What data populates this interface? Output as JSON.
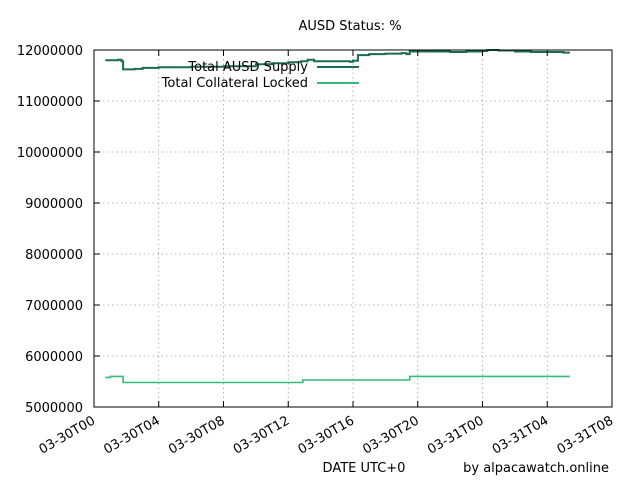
{
  "chart_data": {
    "type": "line",
    "title": "AUSD Status: %",
    "xlabel": "DATE UTC+0",
    "ylabel": "",
    "credit": "by alpacawatch.online",
    "ylim": [
      5000000,
      12000000
    ],
    "xlim_hours": [
      0,
      56
    ],
    "y_ticks": [
      5000000,
      6000000,
      7000000,
      8000000,
      9000000,
      10000000,
      11000000,
      12000000
    ],
    "x_ticks": [
      {
        "hour": 0,
        "label": "03-30T00"
      },
      {
        "hour": 4,
        "label": "03-30T04"
      },
      {
        "hour": 8,
        "label": "03-30T08"
      },
      {
        "hour": 12,
        "label": "03-30T12"
      },
      {
        "hour": 16,
        "label": "03-30T16"
      },
      {
        "hour": 20,
        "label": "03-30T20"
      },
      {
        "hour": 24,
        "label": "03-31T00"
      },
      {
        "hour": 28,
        "label": "03-31T04"
      },
      {
        "hour": 32,
        "label": "03-31T08"
      }
    ],
    "grid": true,
    "legend_position": "top-left",
    "series": [
      {
        "name": "Total AUSD Supply",
        "color": "#1a6b52",
        "points": [
          [
            0.7,
            11800000
          ],
          [
            1.5,
            11810000
          ],
          [
            1.7,
            11780000
          ],
          [
            1.8,
            11620000
          ],
          [
            2.5,
            11630000
          ],
          [
            3.0,
            11650000
          ],
          [
            4.0,
            11660000
          ],
          [
            5.0,
            11660000
          ],
          [
            6.0,
            11670000
          ],
          [
            8.0,
            11680000
          ],
          [
            10.0,
            11720000
          ],
          [
            11.0,
            11740000
          ],
          [
            12.0,
            11760000
          ],
          [
            12.8,
            11780000
          ],
          [
            13.2,
            11810000
          ],
          [
            13.6,
            11780000
          ],
          [
            15.0,
            11780000
          ],
          [
            15.8,
            11770000
          ],
          [
            16.0,
            11790000
          ],
          [
            16.3,
            11900000
          ],
          [
            17.0,
            11920000
          ],
          [
            18.0,
            11930000
          ],
          [
            19.0,
            11940000
          ],
          [
            19.3,
            11920000
          ],
          [
            19.5,
            11970000
          ],
          [
            20.5,
            11970000
          ],
          [
            22.0,
            11960000
          ],
          [
            23.0,
            11970000
          ],
          [
            24.0,
            11980000
          ],
          [
            24.3,
            12000000
          ],
          [
            25.0,
            11990000
          ],
          [
            26.0,
            11970000
          ],
          [
            27.0,
            11960000
          ],
          [
            28.0,
            11960000
          ],
          [
            29.0,
            11950000
          ],
          [
            29.4,
            11950000
          ]
        ]
      },
      {
        "name": "Total Collateral Locked",
        "color": "#33bb7a",
        "points": [
          [
            0.7,
            5580000
          ],
          [
            1.0,
            5600000
          ],
          [
            1.7,
            5600000
          ],
          [
            1.8,
            5480000
          ],
          [
            12.8,
            5480000
          ],
          [
            12.9,
            5530000
          ],
          [
            19.2,
            5530000
          ],
          [
            19.5,
            5600000
          ],
          [
            29.4,
            5600000
          ]
        ]
      }
    ]
  }
}
